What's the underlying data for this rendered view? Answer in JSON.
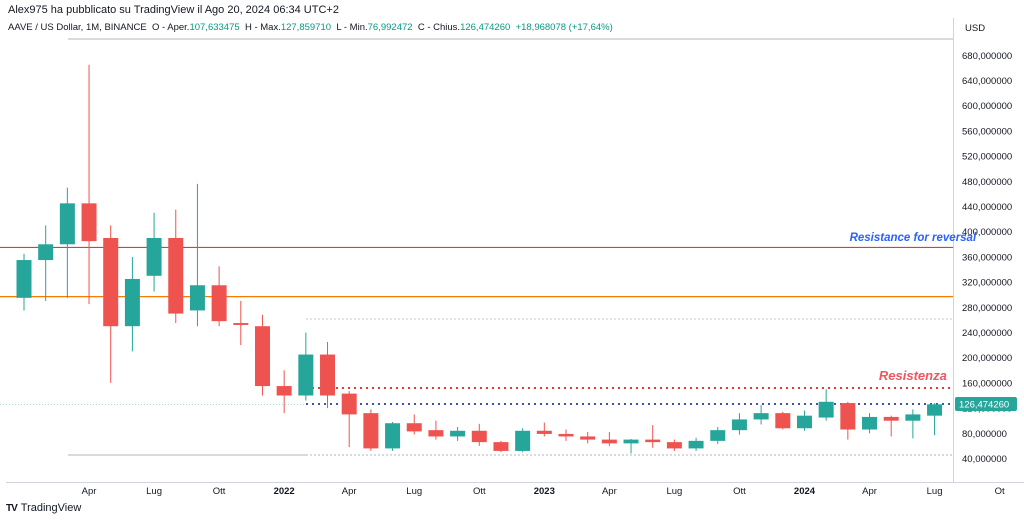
{
  "publisher": "Alex975 ha pubblicato su TradingView il Ago 20, 2024 06:34 UTC+2",
  "header": {
    "symbol": "AAVE / US Dollar, 1M, BINANCE",
    "open_label": "O - Aper.",
    "open": "107,633475",
    "high_label": "H - Max.",
    "high": "127,859710",
    "low_label": "L - Min.",
    "low": "76,992472",
    "close_label": "C - Chius.",
    "close": "126,474260",
    "change": "+18,968078 (+17,64%)"
  },
  "footer": {
    "logo": "TV",
    "brand": "TradingView"
  },
  "colors": {
    "up": "#26a69a",
    "down": "#ef5350",
    "resistance_red": "#e53935",
    "support_orange": "#f57c00",
    "dotted_red": "#e53935",
    "dotted_blue": "#3f51b5",
    "blue_label": "#2962ff",
    "red_label": "#f05560",
    "price_tag": "#26a69a"
  },
  "chart_data": {
    "type": "candlestick",
    "currency": "USD",
    "y_ticks": [
      40,
      80,
      120,
      160,
      200,
      240,
      280,
      320,
      360,
      400,
      440,
      480,
      520,
      560,
      600,
      640,
      680
    ],
    "y_tick_labels": [
      "40,000000",
      "80,000000",
      "120,000000",
      "160,000000",
      "200,000000",
      "240,000000",
      "280,000000",
      "320,000000",
      "360,000000",
      "400,000000",
      "440,000000",
      "480,000000",
      "520,000000",
      "560,000000",
      "600,000000",
      "640,000000",
      "680,000000"
    ],
    "x_labels": [
      {
        "text": "Apr",
        "month": 3,
        "bold": false
      },
      {
        "text": "Lug",
        "month": 6,
        "bold": false
      },
      {
        "text": "Ott",
        "month": 9,
        "bold": false
      },
      {
        "text": "2022",
        "month": 12,
        "bold": true
      },
      {
        "text": "Apr",
        "month": 15,
        "bold": false
      },
      {
        "text": "Lug",
        "month": 18,
        "bold": false
      },
      {
        "text": "Ott",
        "month": 21,
        "bold": false
      },
      {
        "text": "2023",
        "month": 24,
        "bold": true
      },
      {
        "text": "Apr",
        "month": 27,
        "bold": false
      },
      {
        "text": "Lug",
        "month": 30,
        "bold": false
      },
      {
        "text": "Ott",
        "month": 33,
        "bold": false
      },
      {
        "text": "2024",
        "month": 36,
        "bold": true
      },
      {
        "text": "Apr",
        "month": 39,
        "bold": false
      },
      {
        "text": "Lug",
        "month": 42,
        "bold": false
      },
      {
        "text": "Ot",
        "month": 45,
        "bold": false
      }
    ],
    "candles": [
      {
        "month": 0,
        "o": 295,
        "h": 365,
        "l": 275,
        "c": 355
      },
      {
        "month": 1,
        "o": 355,
        "h": 410,
        "l": 290,
        "c": 380
      },
      {
        "month": 2,
        "o": 380,
        "h": 470,
        "l": 295,
        "c": 445
      },
      {
        "month": 3,
        "o": 445,
        "h": 665,
        "l": 285,
        "c": 385
      },
      {
        "month": 4,
        "o": 390,
        "h": 410,
        "l": 160,
        "c": 250
      },
      {
        "month": 5,
        "o": 250,
        "h": 360,
        "l": 210,
        "c": 325
      },
      {
        "month": 6,
        "o": 330,
        "h": 430,
        "l": 305,
        "c": 390
      },
      {
        "month": 7,
        "o": 390,
        "h": 435,
        "l": 255,
        "c": 270
      },
      {
        "month": 8,
        "o": 275,
        "h": 476,
        "l": 250,
        "c": 315
      },
      {
        "month": 9,
        "o": 315,
        "h": 345,
        "l": 250,
        "c": 258
      },
      {
        "month": 10,
        "o": 255,
        "h": 290,
        "l": 220,
        "c": 252
      },
      {
        "month": 11,
        "o": 250,
        "h": 268,
        "l": 140,
        "c": 155
      },
      {
        "month": 12,
        "o": 155,
        "h": 180,
        "l": 112,
        "c": 140
      },
      {
        "month": 13,
        "o": 140,
        "h": 240,
        "l": 132,
        "c": 205
      },
      {
        "month": 14,
        "o": 205,
        "h": 225,
        "l": 120,
        "c": 140
      },
      {
        "month": 15,
        "o": 143,
        "h": 147,
        "l": 58,
        "c": 110
      },
      {
        "month": 16,
        "o": 112,
        "h": 118,
        "l": 52,
        "c": 56
      },
      {
        "month": 17,
        "o": 56,
        "h": 98,
        "l": 52,
        "c": 96
      },
      {
        "month": 18,
        "o": 96,
        "h": 110,
        "l": 78,
        "c": 83
      },
      {
        "month": 19,
        "o": 85,
        "h": 100,
        "l": 70,
        "c": 75
      },
      {
        "month": 20,
        "o": 75,
        "h": 90,
        "l": 68,
        "c": 84
      },
      {
        "month": 21,
        "o": 84,
        "h": 95,
        "l": 60,
        "c": 66
      },
      {
        "month": 22,
        "o": 66,
        "h": 68,
        "l": 50,
        "c": 52
      },
      {
        "month": 23,
        "o": 52,
        "h": 88,
        "l": 50,
        "c": 84
      },
      {
        "month": 24,
        "o": 84,
        "h": 97,
        "l": 75,
        "c": 79
      },
      {
        "month": 25,
        "o": 79,
        "h": 86,
        "l": 68,
        "c": 75
      },
      {
        "month": 26,
        "o": 75,
        "h": 82,
        "l": 64,
        "c": 70
      },
      {
        "month": 27,
        "o": 70,
        "h": 82,
        "l": 60,
        "c": 64
      },
      {
        "month": 28,
        "o": 64,
        "h": 71,
        "l": 48,
        "c": 70
      },
      {
        "month": 29,
        "o": 70,
        "h": 93,
        "l": 57,
        "c": 66
      },
      {
        "month": 30,
        "o": 66,
        "h": 70,
        "l": 52,
        "c": 56
      },
      {
        "month": 31,
        "o": 56,
        "h": 73,
        "l": 52,
        "c": 68
      },
      {
        "month": 32,
        "o": 68,
        "h": 90,
        "l": 63,
        "c": 85
      },
      {
        "month": 33,
        "o": 85,
        "h": 112,
        "l": 78,
        "c": 102
      },
      {
        "month": 34,
        "o": 102,
        "h": 125,
        "l": 94,
        "c": 112
      },
      {
        "month": 35,
        "o": 112,
        "h": 114,
        "l": 86,
        "c": 88
      },
      {
        "month": 36,
        "o": 88,
        "h": 116,
        "l": 84,
        "c": 108
      },
      {
        "month": 37,
        "o": 105,
        "h": 150,
        "l": 100,
        "c": 130
      },
      {
        "month": 38,
        "o": 128,
        "h": 130,
        "l": 70,
        "c": 86
      },
      {
        "month": 39,
        "o": 86,
        "h": 112,
        "l": 80,
        "c": 106
      },
      {
        "month": 40,
        "o": 106,
        "h": 108,
        "l": 75,
        "c": 100
      },
      {
        "month": 41,
        "o": 100,
        "h": 118,
        "l": 72,
        "c": 110
      },
      {
        "month": 42,
        "o": 108,
        "h": 128,
        "l": 77,
        "c": 126
      }
    ],
    "levels": [
      {
        "name": "resistance-red",
        "value": 375,
        "style": "solid"
      },
      {
        "name": "support-orange",
        "value": 297,
        "style": "solid"
      },
      {
        "name": "dotted-red",
        "value": 152,
        "style": "dotted"
      },
      {
        "name": "dotted-blue",
        "value": 126.47,
        "style": "dotted"
      }
    ],
    "annotations": [
      {
        "text": "Resistance for reversal",
        "value": 385,
        "month": 41
      },
      {
        "text": "Resistenza",
        "value": 165,
        "month": 41
      }
    ],
    "last_price": "126,474260"
  }
}
